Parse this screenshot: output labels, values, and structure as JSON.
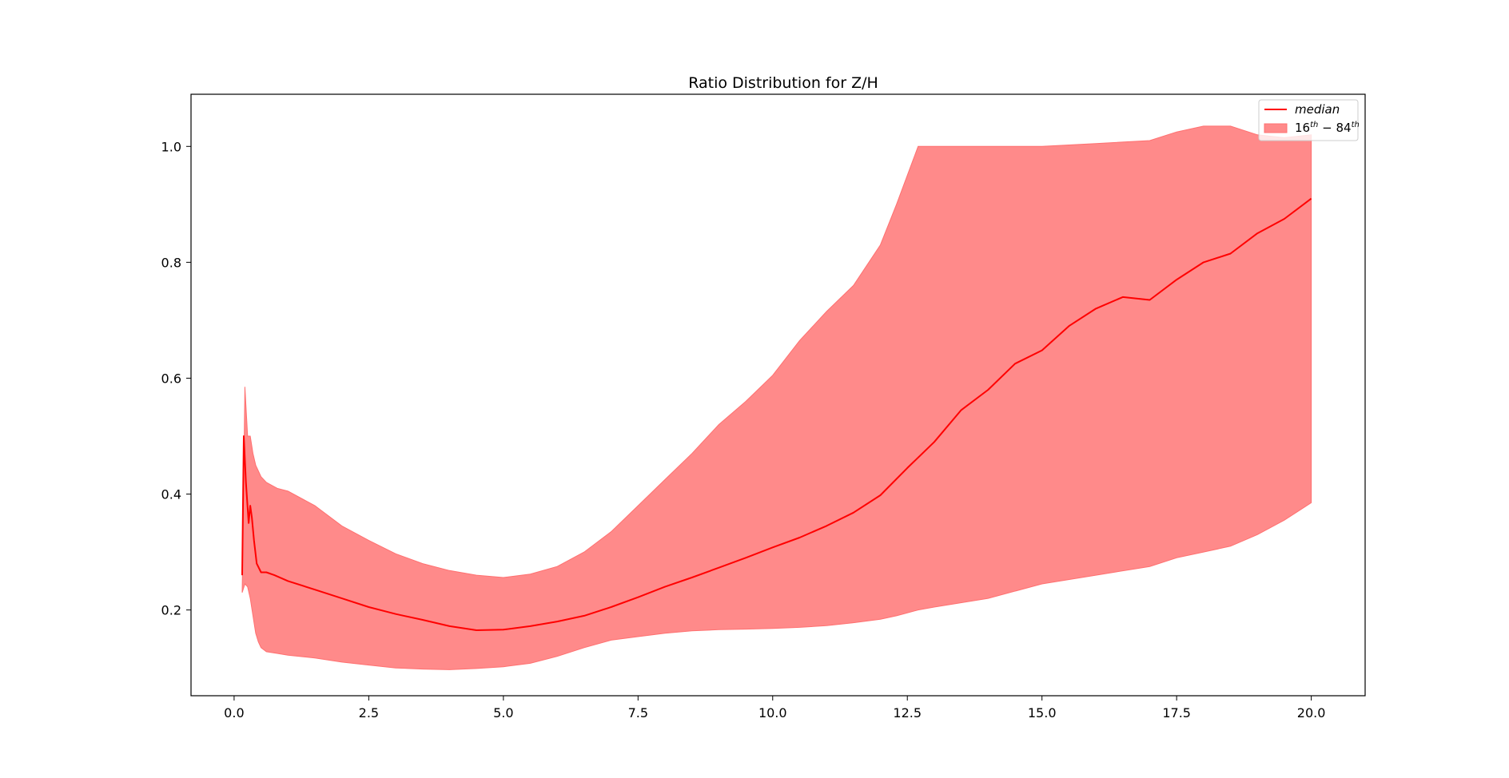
{
  "chart_data": {
    "type": "line",
    "title": "Ratio Distribution for Z/H",
    "xlabel": "",
    "ylabel": "",
    "xlim": [
      -0.8,
      21.0
    ],
    "ylim": [
      0.052,
      1.09
    ],
    "x_ticks": [
      0.0,
      2.5,
      5.0,
      7.5,
      10.0,
      12.5,
      15.0,
      17.5,
      20.0
    ],
    "x_tick_labels": [
      "0.0",
      "2.5",
      "5.0",
      "7.5",
      "10.0",
      "12.5",
      "15.0",
      "17.5",
      "20.0"
    ],
    "y_ticks": [
      0.2,
      0.4,
      0.6,
      0.8,
      1.0
    ],
    "y_tick_labels": [
      "0.2",
      "0.4",
      "0.6",
      "0.8",
      "1.0"
    ],
    "grid": false,
    "legend_position": "top-right",
    "colors": {
      "median_line": "#ff0000",
      "band_fill": "#ff8a8a",
      "band_edge": "#ff7070"
    },
    "series": [
      {
        "name": "median",
        "kind": "line",
        "x": [
          0.15,
          0.18,
          0.22,
          0.27,
          0.3,
          0.33,
          0.37,
          0.42,
          0.5,
          0.6,
          0.75,
          1.0,
          1.5,
          2.0,
          2.5,
          3.0,
          3.5,
          4.0,
          4.5,
          5.0,
          5.5,
          6.0,
          6.5,
          7.0,
          7.5,
          8.0,
          8.5,
          9.0,
          9.5,
          10.0,
          10.5,
          11.0,
          11.5,
          12.0,
          12.5,
          13.0,
          13.5,
          14.0,
          14.5,
          15.0,
          15.5,
          16.0,
          16.5,
          17.0,
          17.5,
          18.0,
          18.5,
          19.0,
          19.5,
          20.0
        ],
        "y": [
          0.26,
          0.5,
          0.42,
          0.35,
          0.38,
          0.36,
          0.32,
          0.28,
          0.265,
          0.265,
          0.26,
          0.25,
          0.235,
          0.22,
          0.205,
          0.193,
          0.183,
          0.172,
          0.165,
          0.166,
          0.172,
          0.18,
          0.19,
          0.205,
          0.222,
          0.24,
          0.256,
          0.273,
          0.29,
          0.308,
          0.325,
          0.345,
          0.368,
          0.398,
          0.445,
          0.49,
          0.545,
          0.58,
          0.625,
          0.648,
          0.69,
          0.72,
          0.74,
          0.735,
          0.77,
          0.8,
          0.815,
          0.85,
          0.875,
          0.91
        ]
      },
      {
        "name": "16^{th} - 84^{th}",
        "kind": "band",
        "x": [
          0.15,
          0.2,
          0.25,
          0.3,
          0.35,
          0.4,
          0.45,
          0.5,
          0.6,
          0.8,
          1.0,
          1.5,
          2.0,
          2.5,
          3.0,
          3.5,
          4.0,
          4.5,
          5.0,
          5.5,
          6.0,
          6.5,
          7.0,
          7.5,
          8.0,
          8.5,
          9.0,
          9.5,
          10.0,
          10.5,
          11.0,
          11.5,
          12.0,
          12.3,
          12.5,
          12.7,
          13.0,
          14.0,
          15.0,
          16.0,
          17.0,
          17.5,
          18.0,
          18.5,
          19.0,
          19.5,
          20.0
        ],
        "lower": [
          0.23,
          0.245,
          0.24,
          0.22,
          0.19,
          0.16,
          0.145,
          0.135,
          0.128,
          0.125,
          0.122,
          0.117,
          0.11,
          0.105,
          0.1,
          0.098,
          0.097,
          0.099,
          0.102,
          0.108,
          0.12,
          0.135,
          0.148,
          0.154,
          0.16,
          0.164,
          0.166,
          0.167,
          0.168,
          0.17,
          0.173,
          0.178,
          0.184,
          0.19,
          0.195,
          0.2,
          0.205,
          0.22,
          0.245,
          0.26,
          0.275,
          0.29,
          0.3,
          0.31,
          0.33,
          0.355,
          0.385
        ],
        "upper": [
          0.23,
          0.585,
          0.5,
          0.5,
          0.47,
          0.45,
          0.44,
          0.43,
          0.42,
          0.41,
          0.405,
          0.38,
          0.345,
          0.32,
          0.297,
          0.28,
          0.268,
          0.26,
          0.256,
          0.262,
          0.275,
          0.3,
          0.335,
          0.38,
          0.425,
          0.47,
          0.52,
          0.56,
          0.605,
          0.665,
          0.715,
          0.76,
          0.83,
          0.9,
          0.95,
          1.0,
          1.0,
          1.0,
          1.0,
          1.005,
          1.01,
          1.025,
          1.035,
          1.035,
          1.02,
          1.015,
          1.02
        ]
      }
    ]
  }
}
